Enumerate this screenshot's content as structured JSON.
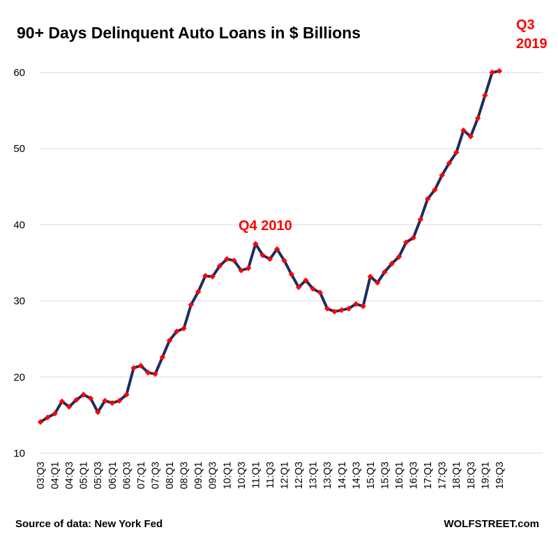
{
  "chart_data": {
    "type": "line",
    "title": "90+ Days Delinquent Auto Loans in $ Billions",
    "ylim": [
      10,
      62
    ],
    "yticks": [
      10,
      20,
      30,
      40,
      50,
      60
    ],
    "grid": true,
    "tick_labels": [
      "03:Q3",
      "04:Q1",
      "04:Q3",
      "05:Q1",
      "05:Q3",
      "06:Q1",
      "06:Q3",
      "07:Q1",
      "07:Q3",
      "08:Q1",
      "08:Q3",
      "09:Q1",
      "09:Q3",
      "10:Q1",
      "10:Q3",
      "11:Q1",
      "11:Q3",
      "12:Q1",
      "12:Q3",
      "13:Q1",
      "13:Q3",
      "14:Q1",
      "14:Q3",
      "15:Q1",
      "15:Q3",
      "16:Q1",
      "16:Q3",
      "17:Q1",
      "17:Q3",
      "18:Q1",
      "18:Q3",
      "19:Q1",
      "19:Q3"
    ],
    "series": [
      {
        "x": [
          "03:Q3",
          "03:Q4",
          "04:Q1",
          "04:Q2",
          "04:Q3",
          "04:Q4",
          "05:Q1",
          "05:Q2",
          "05:Q3",
          "05:Q4",
          "06:Q1",
          "06:Q2",
          "06:Q3",
          "06:Q4",
          "07:Q1",
          "07:Q2",
          "07:Q3",
          "07:Q4",
          "08:Q1",
          "08:Q2",
          "08:Q3",
          "08:Q4",
          "09:Q1",
          "09:Q2",
          "09:Q3",
          "09:Q4",
          "10:Q1",
          "10:Q2",
          "10:Q3",
          "10:Q4",
          "11:Q1",
          "11:Q2",
          "11:Q3",
          "11:Q4",
          "12:Q1",
          "12:Q2",
          "12:Q3",
          "12:Q4",
          "13:Q1",
          "13:Q2",
          "13:Q3",
          "13:Q4",
          "14:Q1",
          "14:Q2",
          "14:Q3",
          "14:Q4",
          "15:Q1",
          "15:Q2",
          "15:Q3",
          "15:Q4",
          "16:Q1",
          "16:Q2",
          "16:Q3",
          "16:Q4",
          "17:Q1",
          "17:Q2",
          "17:Q3",
          "17:Q4",
          "18:Q1",
          "18:Q2",
          "18:Q3",
          "18:Q4",
          "19:Q1",
          "19:Q2",
          "19:Q3"
        ],
        "values": [
          14.1,
          14.7,
          15.2,
          16.8,
          16.1,
          17.0,
          17.7,
          17.2,
          15.4,
          16.9,
          16.6,
          16.9,
          17.7,
          21.2,
          21.5,
          20.6,
          20.4,
          22.6,
          24.8,
          26.0,
          26.4,
          29.5,
          31.2,
          33.3,
          33.2,
          34.6,
          35.5,
          35.3,
          34.0,
          34.3,
          37.5,
          36.0,
          35.5,
          36.8,
          35.3,
          33.5,
          31.8,
          32.7,
          31.6,
          31.1,
          29.0,
          28.6,
          28.8,
          29.0,
          29.6,
          29.3,
          33.2,
          32.4,
          33.8,
          34.9,
          35.8,
          37.7,
          38.3,
          40.7,
          43.4,
          44.6,
          46.5,
          48.1,
          49.5,
          52.4,
          51.6,
          54.0,
          57.0,
          60.0,
          60.2
        ]
      }
    ],
    "annotations": [
      {
        "lines": [
          "Q4 2010"
        ]
      },
      {
        "lines": [
          "Q3",
          "2019"
        ]
      }
    ],
    "colors": {
      "line": "#1f2d5c",
      "marker": "#ff0000",
      "annotation": "#ff0000",
      "grid": "#d9d9d9"
    }
  },
  "footer": {
    "source": "Source of data: New York Fed",
    "brand": "WOLFSTREET.com"
  }
}
